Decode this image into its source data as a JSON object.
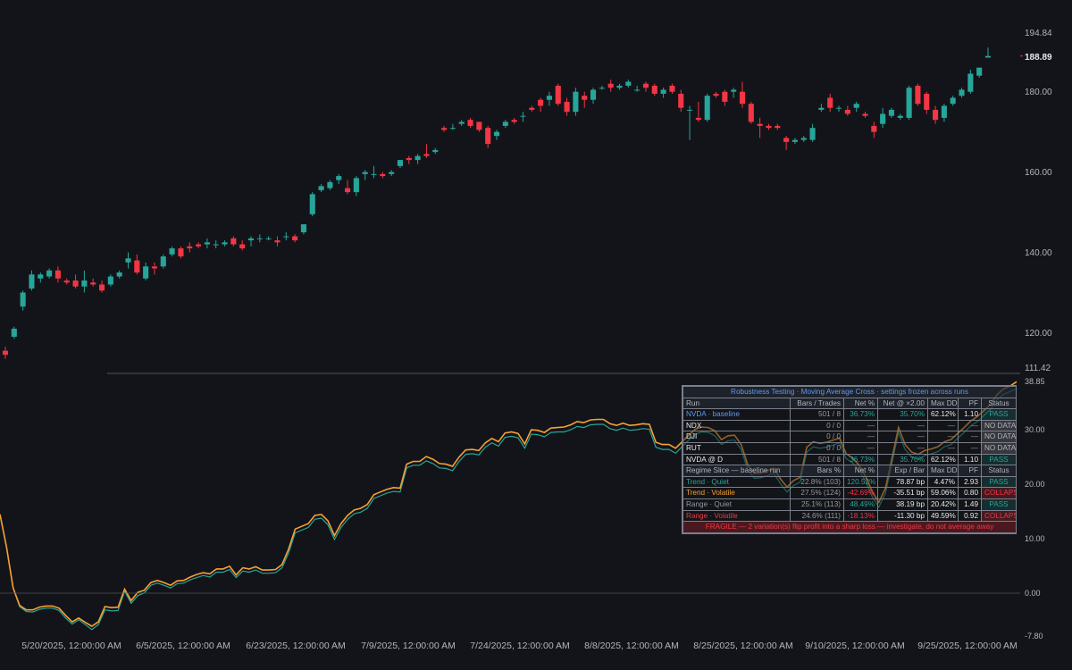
{
  "price_axis": {
    "ticks": [
      "194.84",
      "180.00",
      "160.00",
      "140.00",
      "120.00",
      "111.42"
    ],
    "last_price": "188.89",
    "range": [
      111.42,
      194.84
    ]
  },
  "equity_axis": {
    "ticks": [
      "38.85",
      "30.00",
      "20.00",
      "10.00",
      "0.00",
      "-7.80"
    ],
    "range": [
      -7.8,
      38.85
    ]
  },
  "date_axis": [
    "5/20/2025, 12:00:00 AM",
    "6/5/2025, 12:00:00 AM",
    "6/23/2025, 12:00:00 AM",
    "7/9/2025, 12:00:00 AM",
    "7/24/2025, 12:00:00 AM",
    "8/8/2025, 12:00:00 AM",
    "8/25/2025, 12:00:00 AM",
    "9/10/2025, 12:00:00 AM",
    "9/25/2025, 12:00:00 AM"
  ],
  "colors": {
    "up": "#26a69a",
    "down": "#f23645",
    "equity_teal": "#26a69a",
    "equity_orange": "#f7a133",
    "background": "#131419"
  },
  "panel": {
    "title": "Robustness Testing · Moving Average Cross · settings frozen across runs",
    "run_header": [
      "Run",
      "Bars / Trades",
      "Net %",
      "Net @ ×2.00",
      "Max DD",
      "PF",
      "Status"
    ],
    "runs": [
      {
        "name": "NVDA · baseline",
        "bars": "501 / 8",
        "net": "36.73%",
        "net2": "35.70%",
        "dd": "62.12%",
        "pf": "1.10",
        "status": "PASS"
      },
      {
        "name": "NDX",
        "bars": "0 / 0",
        "net": "—",
        "net2": "—",
        "dd": "—",
        "pf": "—",
        "status": "NO DATA"
      },
      {
        "name": "DJI",
        "bars": "0 / 0",
        "net": "—",
        "net2": "—",
        "dd": "—",
        "pf": "—",
        "status": "NO DATA"
      },
      {
        "name": "RUT",
        "bars": "0 / 0",
        "net": "—",
        "net2": "—",
        "dd": "—",
        "pf": "—",
        "status": "NO DATA"
      },
      {
        "name": "NVDA @ D",
        "bars": "501 / 8",
        "net": "36.73%",
        "net2": "35.70%",
        "dd": "62.12%",
        "pf": "1.10",
        "status": "PASS"
      }
    ],
    "regime_header": [
      "Regime Slice — baseline run",
      "Bars %",
      "Net %",
      "Exp / Bar",
      "Max DD",
      "PF",
      "Status"
    ],
    "regimes": [
      {
        "name": "Trend · Quiet",
        "bars": "22.8% (103)",
        "net": "120.52%",
        "exp": "78.87 bp",
        "dd": "4.47%",
        "pf": "2.93",
        "status": "PASS"
      },
      {
        "name": "Trend · Volatile",
        "bars": "27.5% (124)",
        "net": "-42.69%",
        "exp": "-35.51 bp",
        "dd": "59.06%",
        "pf": "0.80",
        "status": "COLLAPSE"
      },
      {
        "name": "Range · Quiet",
        "bars": "25.1% (113)",
        "net": "48.49%",
        "exp": "38.19 bp",
        "dd": "20.42%",
        "pf": "1.49",
        "status": "PASS"
      },
      {
        "name": "Range · Volatile",
        "bars": "24.6% (111)",
        "net": "-18.13%",
        "exp": "-11.30 bp",
        "dd": "49.59%",
        "pf": "0.92",
        "status": "COLLAPSE"
      }
    ],
    "footer": "FRAGILE — 2 variation(s) flip profit into a sharp loss — investigate, do not average away"
  },
  "chart_data": [
    {
      "type": "candlestick",
      "title": "",
      "x_range": [
        "5/15/2025",
        "10/1/2025"
      ],
      "ylim": [
        111.42,
        194.84
      ],
      "candles": [
        [
          115.5,
          116.5,
          113.5,
          114.5
        ],
        [
          119.0,
          121.5,
          118.5,
          121.0
        ],
        [
          126.5,
          130.5,
          125.5,
          130.0
        ],
        [
          131.0,
          135.5,
          130.5,
          134.5
        ],
        [
          133.5,
          135.0,
          132.5,
          134.5
        ],
        [
          134.0,
          136.0,
          133.5,
          135.5
        ],
        [
          135.5,
          136.5,
          132.5,
          133.5
        ],
        [
          133.0,
          133.5,
          132.0,
          132.5
        ],
        [
          133.0,
          134.5,
          131.0,
          131.5
        ],
        [
          131.5,
          135.5,
          130.0,
          133.0
        ],
        [
          132.5,
          133.5,
          131.5,
          132.0
        ],
        [
          132.0,
          133.0,
          130.0,
          130.5
        ],
        [
          132.0,
          134.5,
          131.5,
          134.0
        ],
        [
          134.0,
          135.5,
          133.5,
          135.0
        ],
        [
          137.5,
          140.0,
          136.0,
          138.5
        ],
        [
          138.0,
          139.5,
          134.5,
          135.0
        ],
        [
          133.5,
          137.5,
          133.0,
          136.5
        ],
        [
          136.5,
          137.5,
          134.5,
          136.0
        ],
        [
          136.5,
          139.5,
          136.0,
          139.0
        ],
        [
          139.5,
          141.5,
          139.0,
          141.0
        ],
        [
          141.0,
          141.5,
          138.5,
          139.0
        ],
        [
          141.5,
          142.5,
          140.0,
          141.0
        ],
        [
          142.0,
          142.5,
          141.0,
          141.5
        ],
        [
          142.0,
          143.5,
          141.0,
          142.5
        ],
        [
          142.0,
          143.0,
          141.0,
          142.0
        ],
        [
          142.0,
          143.0,
          141.5,
          142.5
        ],
        [
          143.5,
          144.0,
          141.5,
          142.0
        ],
        [
          142.0,
          143.0,
          140.5,
          141.0
        ],
        [
          143.0,
          144.0,
          141.5,
          143.5
        ],
        [
          143.5,
          144.5,
          142.5,
          143.5
        ],
        [
          143.5,
          144.0,
          143.0,
          143.5
        ],
        [
          143.0,
          144.0,
          141.5,
          142.5
        ],
        [
          144.0,
          145.0,
          143.0,
          144.0
        ],
        [
          144.0,
          144.5,
          142.5,
          143.0
        ],
        [
          145.0,
          147.0,
          144.5,
          147.0
        ],
        [
          149.5,
          155.0,
          149.0,
          154.5
        ],
        [
          155.5,
          157.0,
          155.0,
          156.5
        ],
        [
          156.0,
          158.0,
          155.5,
          157.5
        ],
        [
          158.0,
          159.5,
          157.0,
          159.0
        ],
        [
          156.0,
          158.0,
          154.5,
          155.0
        ],
        [
          155.0,
          159.0,
          154.0,
          158.5
        ],
        [
          159.5,
          160.5,
          158.0,
          160.0
        ],
        [
          159.5,
          161.5,
          158.5,
          159.5
        ],
        [
          159.5,
          160.0,
          158.5,
          159.0
        ],
        [
          159.5,
          160.5,
          159.0,
          160.0
        ],
        [
          161.5,
          163.0,
          161.0,
          163.0
        ],
        [
          163.5,
          164.0,
          162.0,
          163.0
        ],
        [
          163.0,
          164.5,
          162.0,
          164.0
        ],
        [
          164.5,
          167.0,
          163.5,
          164.0
        ],
        [
          165.0,
          166.0,
          164.5,
          165.5
        ],
        [
          171.0,
          171.5,
          170.0,
          170.5
        ],
        [
          171.0,
          172.0,
          170.5,
          171.0
        ],
        [
          172.0,
          173.0,
          171.5,
          172.5
        ],
        [
          173.0,
          173.5,
          171.0,
          171.5
        ],
        [
          172.5,
          172.5,
          170.0,
          170.5
        ],
        [
          171.0,
          171.5,
          166.0,
          167.0
        ],
        [
          169.0,
          170.5,
          168.0,
          170.0
        ],
        [
          171.5,
          173.0,
          171.0,
          172.5
        ],
        [
          173.0,
          173.5,
          172.0,
          172.5
        ],
        [
          174.0,
          175.0,
          172.5,
          174.0
        ],
        [
          176.0,
          176.5,
          175.0,
          175.5
        ],
        [
          178.0,
          178.5,
          175.0,
          176.5
        ],
        [
          178.0,
          180.0,
          176.5,
          179.0
        ],
        [
          181.5,
          182.0,
          176.5,
          177.0
        ],
        [
          177.5,
          178.5,
          174.0,
          175.0
        ],
        [
          175.0,
          181.0,
          174.0,
          180.0
        ],
        [
          179.0,
          180.0,
          176.0,
          178.0
        ],
        [
          178.0,
          181.0,
          177.0,
          180.5
        ],
        [
          181.0,
          181.5,
          180.5,
          181.0
        ],
        [
          182.0,
          183.0,
          180.0,
          181.0
        ],
        [
          181.0,
          182.0,
          180.5,
          181.5
        ],
        [
          181.5,
          183.0,
          181.0,
          182.5
        ],
        [
          180.5,
          181.5,
          180.0,
          180.5
        ],
        [
          182.0,
          182.5,
          180.0,
          181.0
        ],
        [
          181.5,
          182.0,
          179.0,
          179.5
        ],
        [
          179.5,
          181.0,
          178.5,
          180.5
        ],
        [
          181.5,
          182.0,
          179.5,
          180.0
        ],
        [
          179.5,
          180.5,
          175.0,
          176.0
        ],
        [
          175.5,
          176.5,
          168.0,
          175.5
        ],
        [
          173.5,
          177.5,
          172.5,
          173.0
        ],
        [
          173.0,
          179.5,
          172.5,
          179.0
        ],
        [
          179.5,
          180.0,
          178.5,
          179.0
        ],
        [
          180.0,
          180.5,
          176.5,
          177.5
        ],
        [
          180.0,
          181.0,
          178.5,
          180.5
        ],
        [
          180.0,
          182.5,
          176.0,
          177.0
        ],
        [
          177.0,
          177.5,
          172.0,
          172.5
        ],
        [
          172.0,
          173.5,
          168.5,
          171.5
        ],
        [
          171.5,
          172.0,
          170.5,
          171.0
        ],
        [
          171.5,
          172.0,
          170.5,
          171.0
        ],
        [
          168.5,
          169.0,
          165.5,
          167.5
        ],
        [
          167.5,
          168.5,
          167.0,
          168.0
        ],
        [
          168.0,
          169.0,
          167.5,
          168.5
        ],
        [
          168.0,
          172.0,
          167.5,
          171.0
        ],
        [
          175.5,
          177.0,
          175.0,
          176.0
        ],
        [
          178.5,
          179.5,
          175.0,
          176.0
        ],
        [
          176.0,
          176.5,
          175.0,
          176.0
        ],
        [
          175.5,
          176.5,
          174.0,
          174.5
        ],
        [
          176.0,
          177.5,
          175.0,
          177.0
        ],
        [
          174.5,
          175.0,
          173.5,
          174.0
        ],
        [
          171.5,
          172.5,
          168.5,
          170.0
        ],
        [
          172.0,
          176.0,
          171.0,
          174.5
        ],
        [
          174.0,
          176.0,
          173.5,
          175.5
        ],
        [
          173.5,
          174.5,
          173.0,
          174.0
        ],
        [
          173.5,
          181.5,
          173.0,
          181.0
        ],
        [
          181.5,
          182.0,
          176.5,
          177.0
        ],
        [
          179.5,
          180.0,
          174.5,
          175.5
        ],
        [
          175.5,
          176.5,
          172.0,
          173.0
        ],
        [
          173.5,
          177.0,
          172.5,
          176.5
        ],
        [
          177.0,
          179.0,
          176.5,
          178.5
        ],
        [
          179.0,
          181.0,
          178.5,
          180.5
        ],
        [
          180.0,
          185.5,
          179.5,
          184.5
        ],
        [
          184.0,
          186.0,
          183.5,
          186.0
        ],
        [
          188.5,
          191.0,
          188.5,
          188.9
        ]
      ]
    },
    {
      "type": "line",
      "title": "",
      "ylim": [
        -7.8,
        38.85
      ],
      "series": [
        {
          "values": [
            14.5,
            8.5,
            1.0,
            -2.2,
            -3.0,
            -3.0,
            -2.5,
            -2.3,
            -2.3,
            -2.7,
            -4.0,
            -5.2,
            -4.5,
            -5.3,
            -6.0,
            -5.2,
            -2.4,
            -2.6,
            -2.5,
            0.8,
            -1.3,
            0.2,
            0.6,
            2.0,
            2.4,
            2.0,
            1.5,
            2.3,
            2.4,
            3.0,
            3.5,
            3.8,
            3.6,
            4.5,
            4.5,
            5.0,
            3.4,
            4.7,
            4.5,
            4.9,
            4.3,
            4.3,
            4.4,
            5.3,
            8.1,
            11.8,
            12.3,
            12.8,
            14.3,
            14.5,
            13.3,
            10.6,
            12.8,
            14.3,
            15.3,
            15.6,
            16.3,
            18.1,
            18.6,
            19.1,
            19.4,
            19.3,
            23.7,
            24.2,
            24.2,
            25.1,
            24.6,
            23.8,
            23.7,
            23.3,
            25.0,
            26.3,
            26.4,
            26.2,
            27.6,
            28.4,
            27.8,
            29.4,
            29.6,
            29.3,
            27.4,
            30.0,
            29.9,
            29.5,
            30.3,
            30.4,
            30.5,
            30.9,
            31.5,
            31.3,
            31.8,
            31.9,
            31.9,
            31.1,
            30.8,
            31.2,
            30.8,
            30.9,
            31.1,
            31.0,
            27.7,
            27.3,
            27.3,
            26.6,
            27.8,
            29.0,
            30.1,
            30.5,
            30.4,
            29.8,
            28.2,
            28.9,
            29.0,
            27.3,
            23.6,
            22.0,
            22.1,
            22.5,
            22.9,
            21.0,
            19.5,
            20.7,
            21.3,
            26.8,
            27.8,
            27.5,
            27.7,
            28.1,
            28.5,
            25.6,
            24.8,
            23.5,
            21.4,
            18.6,
            16.7,
            19.3,
            24.8,
            30.4,
            27.3,
            25.9,
            25.5,
            26.2,
            26.5,
            26.9,
            27.8,
            28.2,
            29.3,
            30.4,
            31.6,
            32.4,
            33.5,
            34.6,
            36.4,
            37.5,
            38.0,
            38.8
          ]
        },
        {
          "values": [
            14.5,
            8.5,
            1.0,
            -2.4,
            -3.3,
            -3.4,
            -2.9,
            -2.7,
            -2.7,
            -3.1,
            -4.5,
            -5.6,
            -4.8,
            -5.7,
            -6.6,
            -5.7,
            -3.0,
            -3.2,
            -3.1,
            0.4,
            -1.8,
            -0.4,
            0.1,
            1.5,
            1.9,
            1.5,
            1.0,
            1.8,
            1.9,
            2.5,
            2.9,
            3.3,
            3.0,
            3.9,
            3.9,
            4.4,
            2.9,
            4.1,
            3.9,
            4.3,
            3.7,
            3.7,
            3.8,
            4.7,
            7.4,
            11.1,
            11.6,
            12.1,
            13.6,
            13.8,
            12.6,
            9.9,
            12.1,
            13.6,
            14.6,
            14.9,
            15.6,
            17.4,
            17.9,
            18.4,
            18.7,
            18.6,
            23.0,
            23.5,
            23.5,
            24.3,
            23.8,
            23.0,
            22.9,
            22.5,
            24.2,
            25.5,
            25.6,
            25.4,
            26.8,
            27.6,
            27.0,
            28.6,
            28.8,
            28.5,
            26.6,
            29.2,
            29.1,
            28.7,
            29.5,
            29.6,
            29.6,
            30.0,
            30.6,
            30.4,
            30.9,
            31.0,
            31.0,
            30.2,
            29.9,
            30.3,
            29.9,
            30.0,
            30.2,
            30.1,
            26.8,
            26.4,
            26.4,
            25.7,
            26.9,
            28.1,
            29.2,
            29.6,
            29.5,
            28.9,
            27.3,
            28.0,
            28.1,
            26.4,
            22.7,
            21.1,
            21.2,
            21.6,
            22.0,
            20.1,
            18.6,
            19.8,
            20.4,
            25.9,
            26.9,
            26.6,
            26.8,
            27.2,
            27.6,
            24.7,
            23.9,
            22.6,
            20.5,
            17.7,
            15.8,
            18.4,
            23.9,
            29.5,
            26.4,
            25.0,
            24.6,
            25.3,
            25.6,
            26.0,
            26.9,
            27.3,
            28.4,
            29.5,
            30.7,
            31.5,
            32.6,
            33.7,
            35.5,
            36.5,
            37.0,
            37.5
          ]
        }
      ]
    }
  ]
}
